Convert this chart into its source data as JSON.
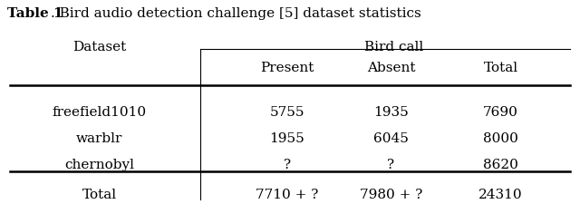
{
  "title_bold": "Table 1",
  "title_rest": ". Bird audio detection challenge [5] dataset statistics",
  "col_group_label": "Bird call",
  "col_header": [
    "Present",
    "Absent",
    "Total"
  ],
  "row_label_header": "Dataset",
  "rows": [
    [
      "freefield1010",
      "5755",
      "1935",
      "7690"
    ],
    [
      "warblr",
      "1955",
      "6045",
      "8000"
    ],
    [
      "chernobyl",
      "?",
      "?",
      "8620"
    ]
  ],
  "total_row": [
    "Total",
    "7710 + ?",
    "7980 + ?",
    "24310"
  ],
  "bg_color": "#ffffff",
  "text_color": "#000000",
  "font_size": 11,
  "title_font_size": 11
}
